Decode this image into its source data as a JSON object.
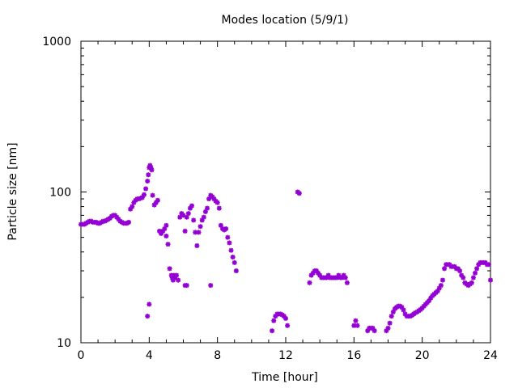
{
  "chart_data": {
    "type": "scatter",
    "title": "Modes location (5/9/1)",
    "xlabel": "Time [hour]",
    "ylabel": "Particle size [nm]",
    "xlim": [
      0,
      24
    ],
    "ylim": [
      10,
      1000
    ],
    "yscale": "log",
    "grid": false,
    "legend": "none",
    "xticks": [
      0,
      4,
      8,
      12,
      16,
      20,
      24
    ],
    "xtick_labels": [
      "0",
      "4",
      "8",
      "12",
      "16",
      "20",
      "24"
    ],
    "yticks": [
      10,
      100,
      1000
    ],
    "ytick_labels": [
      "10",
      "100",
      "1000"
    ],
    "color": "#9400d3",
    "series": [
      {
        "points": [
          [
            0.0,
            61
          ],
          [
            0.1,
            61
          ],
          [
            0.2,
            61
          ],
          [
            0.3,
            62
          ],
          [
            0.4,
            63
          ],
          [
            0.5,
            64
          ],
          [
            0.6,
            64
          ],
          [
            0.7,
            63
          ],
          [
            0.8,
            63
          ],
          [
            0.9,
            63
          ],
          [
            1.0,
            62
          ],
          [
            1.1,
            62
          ],
          [
            1.2,
            63
          ],
          [
            1.3,
            64
          ],
          [
            1.4,
            64
          ],
          [
            1.5,
            65
          ],
          [
            1.6,
            66
          ],
          [
            1.7,
            67
          ],
          [
            1.8,
            69
          ],
          [
            1.9,
            70
          ],
          [
            2.0,
            70
          ],
          [
            2.1,
            68
          ],
          [
            2.2,
            66
          ],
          [
            2.3,
            64
          ],
          [
            2.4,
            63
          ],
          [
            2.5,
            62
          ],
          [
            2.6,
            62
          ],
          [
            2.7,
            62
          ],
          [
            2.8,
            63
          ],
          [
            2.9,
            77
          ],
          [
            3.0,
            80
          ],
          [
            3.1,
            85
          ],
          [
            3.2,
            88
          ],
          [
            3.3,
            90
          ],
          [
            3.4,
            90
          ],
          [
            3.5,
            91
          ],
          [
            3.6,
            92
          ],
          [
            3.7,
            96
          ],
          [
            3.8,
            105
          ],
          [
            3.9,
            118
          ],
          [
            3.95,
            130
          ],
          [
            4.0,
            145
          ],
          [
            4.05,
            150
          ],
          [
            4.1,
            145
          ],
          [
            4.15,
            140
          ],
          [
            4.2,
            95
          ],
          [
            4.3,
            82
          ],
          [
            4.4,
            85
          ],
          [
            4.5,
            88
          ],
          [
            3.9,
            15
          ],
          [
            4.0,
            18
          ],
          [
            4.6,
            55
          ],
          [
            4.7,
            53
          ],
          [
            4.8,
            55
          ],
          [
            4.9,
            57
          ],
          [
            5.0,
            60
          ],
          [
            5.0,
            51
          ],
          [
            5.1,
            45
          ],
          [
            5.2,
            31
          ],
          [
            5.3,
            28
          ],
          [
            5.35,
            27
          ],
          [
            5.4,
            26
          ],
          [
            5.45,
            28
          ],
          [
            5.5,
            27
          ],
          [
            5.6,
            28
          ],
          [
            5.7,
            26
          ],
          [
            5.8,
            68
          ],
          [
            5.9,
            72
          ],
          [
            6.0,
            70
          ],
          [
            6.1,
            55
          ],
          [
            6.2,
            68
          ],
          [
            6.3,
            72
          ],
          [
            6.4,
            78
          ],
          [
            6.5,
            81
          ],
          [
            6.6,
            65
          ],
          [
            6.7,
            54
          ],
          [
            6.8,
            44
          ],
          [
            6.9,
            54
          ],
          [
            7.0,
            59
          ],
          [
            7.1,
            65
          ],
          [
            7.2,
            68
          ],
          [
            7.3,
            74
          ],
          [
            7.4,
            78
          ],
          [
            7.5,
            90
          ],
          [
            7.6,
            95
          ],
          [
            7.7,
            93
          ],
          [
            7.8,
            90
          ],
          [
            7.9,
            87
          ],
          [
            8.0,
            85
          ],
          [
            8.1,
            78
          ],
          [
            6.1,
            24
          ],
          [
            6.2,
            24
          ],
          [
            7.6,
            24
          ],
          [
            8.2,
            60
          ],
          [
            8.3,
            57
          ],
          [
            8.4,
            56
          ],
          [
            8.5,
            57
          ],
          [
            8.6,
            50
          ],
          [
            8.7,
            46
          ],
          [
            8.8,
            41
          ],
          [
            8.9,
            37
          ],
          [
            9.0,
            34
          ],
          [
            9.1,
            30
          ],
          [
            11.2,
            12
          ],
          [
            11.3,
            14
          ],
          [
            11.4,
            15
          ],
          [
            11.5,
            15.5
          ],
          [
            11.6,
            15.5
          ],
          [
            11.7,
            15.5
          ],
          [
            11.8,
            15.3
          ],
          [
            11.9,
            15
          ],
          [
            12.0,
            14.5
          ],
          [
            12.1,
            13
          ],
          [
            12.7,
            100
          ],
          [
            12.8,
            98
          ],
          [
            13.4,
            25
          ],
          [
            13.5,
            28
          ],
          [
            13.6,
            29
          ],
          [
            13.7,
            30
          ],
          [
            13.8,
            30
          ],
          [
            13.9,
            29
          ],
          [
            14.0,
            28
          ],
          [
            14.1,
            27
          ],
          [
            14.2,
            27
          ],
          [
            14.3,
            27
          ],
          [
            14.4,
            27
          ],
          [
            14.5,
            28
          ],
          [
            14.6,
            27
          ],
          [
            14.7,
            27
          ],
          [
            14.8,
            27
          ],
          [
            14.9,
            27
          ],
          [
            15.0,
            27
          ],
          [
            15.1,
            28
          ],
          [
            15.2,
            27
          ],
          [
            15.3,
            27
          ],
          [
            15.4,
            28
          ],
          [
            15.5,
            27
          ],
          [
            15.6,
            25
          ],
          [
            16.0,
            13
          ],
          [
            16.1,
            14
          ],
          [
            16.2,
            13
          ],
          [
            16.8,
            12
          ],
          [
            16.9,
            12.5
          ],
          [
            17.0,
            12.5
          ],
          [
            17.1,
            12.5
          ],
          [
            17.2,
            12
          ],
          [
            17.9,
            12
          ],
          [
            18.0,
            12.5
          ],
          [
            18.1,
            13.5
          ],
          [
            18.2,
            15
          ],
          [
            18.3,
            16
          ],
          [
            18.4,
            16.8
          ],
          [
            18.5,
            17.2
          ],
          [
            18.6,
            17.5
          ],
          [
            18.7,
            17.5
          ],
          [
            18.8,
            17.2
          ],
          [
            18.9,
            16.5
          ],
          [
            19.0,
            15.5
          ],
          [
            19.1,
            15
          ],
          [
            19.2,
            15
          ],
          [
            19.3,
            15
          ],
          [
            19.4,
            15.2
          ],
          [
            19.5,
            15.5
          ],
          [
            19.6,
            15.8
          ],
          [
            19.7,
            16
          ],
          [
            19.8,
            16.3
          ],
          [
            19.9,
            16.6
          ],
          [
            20.0,
            17
          ],
          [
            20.1,
            17.5
          ],
          [
            20.2,
            18
          ],
          [
            20.3,
            18.5
          ],
          [
            20.4,
            19
          ],
          [
            20.5,
            19.8
          ],
          [
            20.6,
            20.5
          ],
          [
            20.7,
            21
          ],
          [
            20.8,
            21.5
          ],
          [
            20.9,
            22
          ],
          [
            21.0,
            23
          ],
          [
            21.1,
            24
          ],
          [
            21.2,
            26
          ],
          [
            21.3,
            31
          ],
          [
            21.4,
            33
          ],
          [
            21.5,
            33
          ],
          [
            21.6,
            33
          ],
          [
            21.7,
            32
          ],
          [
            21.8,
            32
          ],
          [
            21.9,
            32
          ],
          [
            22.0,
            31
          ],
          [
            22.1,
            31
          ],
          [
            22.2,
            30
          ],
          [
            22.3,
            28
          ],
          [
            22.4,
            27
          ],
          [
            22.5,
            25
          ],
          [
            22.6,
            24.5
          ],
          [
            22.7,
            24
          ],
          [
            22.8,
            24.5
          ],
          [
            22.9,
            25
          ],
          [
            23.0,
            27
          ],
          [
            23.1,
            29
          ],
          [
            23.2,
            31
          ],
          [
            23.3,
            33
          ],
          [
            23.4,
            34
          ],
          [
            23.5,
            34
          ],
          [
            23.6,
            34
          ],
          [
            23.7,
            34
          ],
          [
            23.8,
            33
          ],
          [
            23.9,
            33
          ],
          [
            24.0,
            26
          ]
        ]
      }
    ]
  }
}
